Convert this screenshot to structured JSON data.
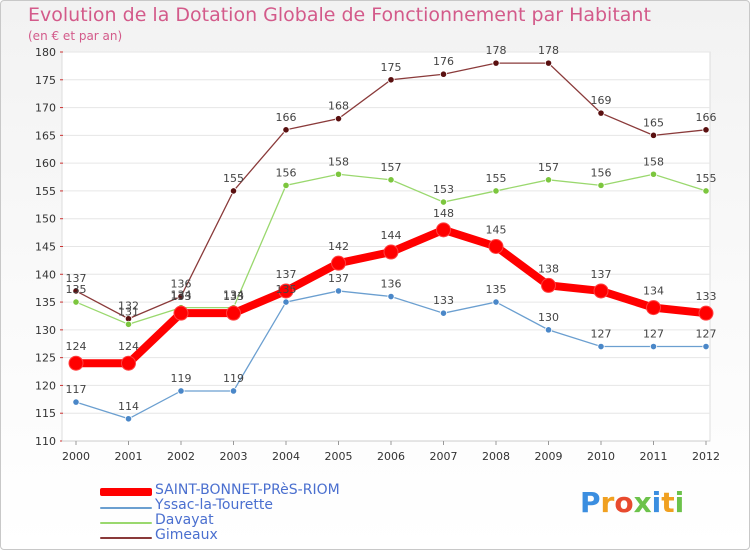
{
  "header": {
    "title": "Evolution de la Dotation Globale de Fonctionnement par Habitant",
    "subtitle": "(en € et par an)"
  },
  "logo": {
    "text": "Proxiti",
    "letters": [
      "P",
      "r",
      "o",
      "x",
      "i",
      "t",
      "i"
    ],
    "colors": [
      "#3b8ee0",
      "#f0a020",
      "#e84a2e",
      "#6cc24a",
      "#3b8ee0",
      "#f0a020",
      "#6cc24a"
    ]
  },
  "chart_data": {
    "type": "line",
    "title": "Evolution de la Dotation Globale de Fonctionnement par Habitant",
    "subtitle": "(en € et par an)",
    "xlabel": "",
    "ylabel": "",
    "categories": [
      "2000",
      "2001",
      "2002",
      "2003",
      "2004",
      "2005",
      "2006",
      "2007",
      "2008",
      "2009",
      "2010",
      "2011",
      "2012"
    ],
    "ylim": [
      110,
      180
    ],
    "yticks": [
      110,
      115,
      120,
      125,
      130,
      135,
      140,
      145,
      150,
      155,
      160,
      165,
      170,
      175,
      180
    ],
    "grid": "horizontal",
    "legend_position": "bottom-left",
    "series": [
      {
        "name": "SAINT-BONNET-PRèS-RIOM",
        "color": "#ff0000",
        "emphasis": true,
        "values": [
          124,
          124,
          133,
          133,
          137,
          142,
          144,
          148,
          145,
          138,
          137,
          134,
          133
        ],
        "labels": [
          "124",
          "124",
          "133",
          "133",
          "137",
          "142",
          "144",
          "148",
          "145",
          "138",
          "137",
          "134",
          "133"
        ]
      },
      {
        "name": "Yssac-la-Tourette",
        "color": "#6b9fd0",
        "marker": "#4a87c8",
        "values": [
          117,
          114,
          119,
          119,
          135,
          137,
          136,
          133,
          135,
          130,
          127,
          127,
          127
        ],
        "labels": [
          "117",
          "114",
          "119",
          "119",
          "135",
          "137",
          "136",
          "133",
          "135",
          "130",
          "127",
          "127",
          "127"
        ]
      },
      {
        "name": "Davayat",
        "color": "#9ad86e",
        "marker": "#7cc63e",
        "values": [
          135,
          131,
          134,
          134,
          156,
          158,
          157,
          153,
          155,
          157,
          156,
          158,
          155
        ],
        "labels": [
          "135",
          "131",
          "134",
          "134",
          "156",
          "158",
          "157",
          "153",
          "155",
          "157",
          "156",
          "158",
          "155"
        ]
      },
      {
        "name": "Gimeaux",
        "color": "#8a3a3a",
        "marker": "#5a1010",
        "values": [
          137,
          132,
          136,
          155,
          166,
          168,
          175,
          176,
          178,
          178,
          169,
          165,
          166
        ],
        "labels": [
          "137",
          "132",
          "136",
          "155",
          "166",
          "168",
          "175",
          "176",
          "178",
          "178",
          "169",
          "165",
          "166"
        ]
      }
    ]
  }
}
